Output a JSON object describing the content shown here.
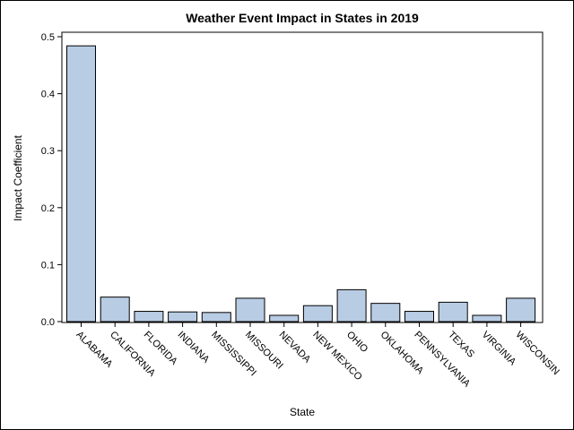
{
  "chart_data": {
    "type": "bar",
    "title": "Weather Event Impact in States in 2019",
    "xlabel": "State",
    "ylabel": "Impact Coefficient",
    "ylim": [
      0,
      0.5
    ],
    "yticks": [
      "0.0",
      "0.1",
      "0.2",
      "0.3",
      "0.4",
      "0.5"
    ],
    "categories": [
      "ALABAMA",
      "CALIFORNIA",
      "FLORIDA",
      "INDIANA",
      "MISSISSIPPI",
      "MISSOURI",
      "NEVADA",
      "NEW MEXICO",
      "OHIO",
      "OKLAHOMA",
      "PENNSYLVANIA",
      "TEXAS",
      "VIRGINIA",
      "WISCONSIN"
    ],
    "values": [
      0.484,
      0.043,
      0.018,
      0.017,
      0.016,
      0.041,
      0.011,
      0.028,
      0.056,
      0.032,
      0.018,
      0.034,
      0.011,
      0.041
    ],
    "bar_color": "#b8cce4",
    "grid": false
  }
}
